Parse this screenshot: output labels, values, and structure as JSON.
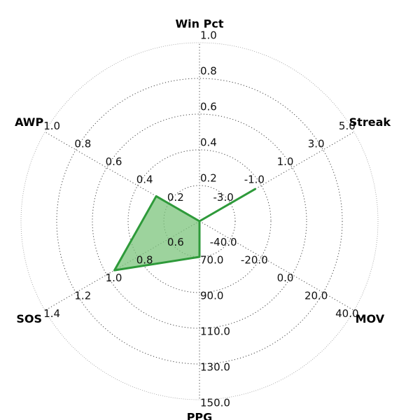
{
  "chart_data": {
    "type": "radar",
    "title": "",
    "axes": [
      {
        "name": "Win Pct",
        "ticks": [
          "0.2",
          "0.4",
          "0.6",
          "0.8",
          "1.0"
        ],
        "range": [
          0.0,
          1.0
        ]
      },
      {
        "name": "Streak",
        "ticks": [
          "-3.0",
          "-1.0",
          "1.0",
          "3.0",
          "5.0"
        ],
        "range": [
          -5.0,
          5.0
        ]
      },
      {
        "name": "MOV",
        "ticks": [
          "-40.0",
          "-20.0",
          "0.0",
          "20.0",
          "40.0"
        ],
        "range": [
          -60.0,
          40.0
        ]
      },
      {
        "name": "PPG",
        "ticks": [
          "70.0",
          "90.0",
          "110.0",
          "130.0",
          "150.0"
        ],
        "range": [
          50.0,
          150.0
        ]
      },
      {
        "name": "SOS",
        "ticks": [
          "0.6",
          "0.8",
          "1.0",
          "1.2",
          "1.4"
        ],
        "range": [
          0.4,
          1.4
        ]
      },
      {
        "name": "AWP",
        "ticks": [
          "0.2",
          "0.4",
          "0.6",
          "0.8",
          "1.0"
        ],
        "range": [
          0.0,
          1.0
        ]
      }
    ],
    "series": [
      {
        "values": [
          0.0,
          -1.4,
          -60.0,
          70.0,
          0.95,
          0.28
        ],
        "color": "#2e9a3a",
        "fill": "#7cc47c"
      }
    ],
    "grid": true,
    "legend": "none"
  }
}
